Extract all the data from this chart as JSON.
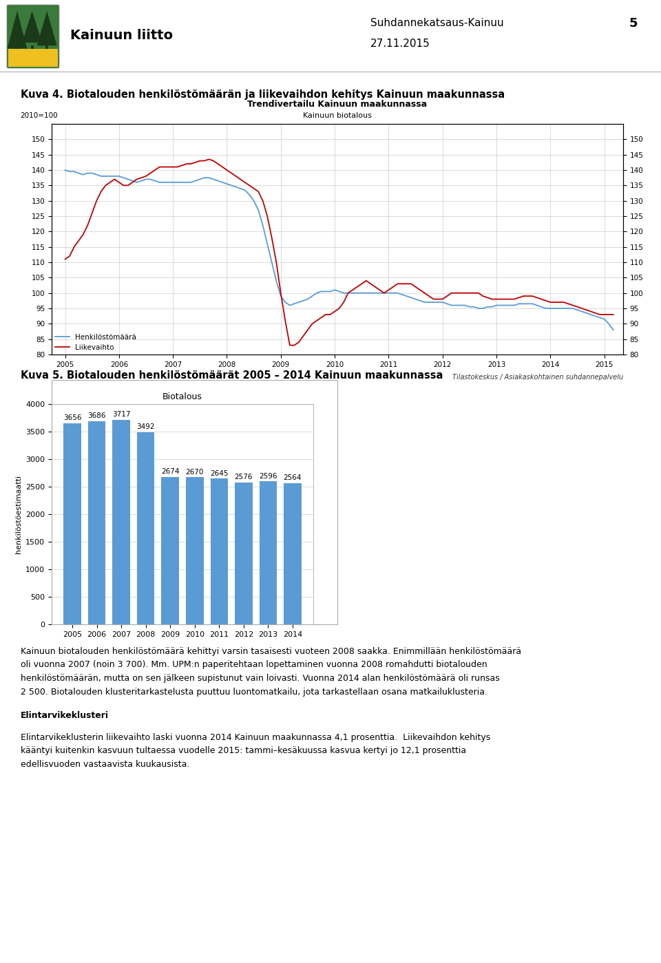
{
  "page_title_left": "Kainuun liitto",
  "page_title_right": "Suhdannekatsaus-Kainuu\n27.11.2015",
  "page_number": "5",
  "kuva4_title": "Kuva 4. Biotalouden henkilöstömäärän ja liikevaihdon kehitys Kainuun maakunnassa",
  "kuva4_chart_title1": "Trendivertailu Kainuun maakunnassa",
  "kuva4_chart_title2": "Kainuun biotalous",
  "kuva4_ylabel": "2010=100",
  "kuva4_source": "Tilastokeskus / Asiakaskohtainen suhdannepalvelu",
  "kuva4_legend1": "Henkilöstömäärä",
  "kuva4_legend2": "Liikevaihto",
  "kuva4_ylim": [
    80,
    155
  ],
  "kuva4_yticks": [
    80,
    85,
    90,
    95,
    100,
    105,
    110,
    115,
    120,
    125,
    130,
    135,
    140,
    145,
    150
  ],
  "kuva4_color_blue": "#5B9BD5",
  "kuva4_color_red": "#C00000",
  "kuva4_blue_x": [
    2005.0,
    2005.083,
    2005.167,
    2005.25,
    2005.333,
    2005.417,
    2005.5,
    2005.583,
    2005.667,
    2005.75,
    2005.833,
    2005.917,
    2006.0,
    2006.083,
    2006.167,
    2006.25,
    2006.333,
    2006.417,
    2006.5,
    2006.583,
    2006.667,
    2006.75,
    2006.833,
    2006.917,
    2007.0,
    2007.083,
    2007.167,
    2007.25,
    2007.333,
    2007.417,
    2007.5,
    2007.583,
    2007.667,
    2007.75,
    2007.833,
    2007.917,
    2008.0,
    2008.083,
    2008.167,
    2008.25,
    2008.333,
    2008.417,
    2008.5,
    2008.583,
    2008.667,
    2008.75,
    2008.833,
    2008.917,
    2009.0,
    2009.083,
    2009.167,
    2009.25,
    2009.333,
    2009.417,
    2009.5,
    2009.583,
    2009.667,
    2009.75,
    2009.833,
    2009.917,
    2010.0,
    2010.083,
    2010.167,
    2010.25,
    2010.333,
    2010.417,
    2010.5,
    2010.583,
    2010.667,
    2010.75,
    2010.833,
    2010.917,
    2011.0,
    2011.083,
    2011.167,
    2011.25,
    2011.333,
    2011.417,
    2011.5,
    2011.583,
    2011.667,
    2011.75,
    2011.833,
    2011.917,
    2012.0,
    2012.083,
    2012.167,
    2012.25,
    2012.333,
    2012.417,
    2012.5,
    2012.583,
    2012.667,
    2012.75,
    2012.833,
    2012.917,
    2013.0,
    2013.083,
    2013.167,
    2013.25,
    2013.333,
    2013.417,
    2013.5,
    2013.583,
    2013.667,
    2013.75,
    2013.833,
    2013.917,
    2014.0,
    2014.083,
    2014.167,
    2014.25,
    2014.333,
    2014.417,
    2014.5,
    2014.583,
    2014.667,
    2014.75,
    2014.833,
    2014.917,
    2015.0,
    2015.083,
    2015.167
  ],
  "kuva4_blue_y": [
    140.0,
    139.5,
    139.5,
    139.0,
    138.5,
    139.0,
    139.0,
    138.5,
    138.0,
    138.0,
    138.0,
    138.0,
    138.0,
    137.5,
    137.0,
    136.5,
    136.0,
    136.5,
    137.0,
    137.0,
    136.5,
    136.0,
    136.0,
    136.0,
    136.0,
    136.0,
    136.0,
    136.0,
    136.0,
    136.5,
    137.0,
    137.5,
    137.5,
    137.0,
    136.5,
    136.0,
    135.5,
    135.0,
    134.5,
    134.0,
    133.5,
    132.0,
    130.0,
    127.0,
    122.0,
    116.0,
    110.0,
    104.0,
    99.0,
    97.0,
    96.0,
    96.5,
    97.0,
    97.5,
    98.0,
    99.0,
    100.0,
    100.5,
    100.5,
    100.5,
    101.0,
    100.5,
    100.0,
    100.0,
    100.0,
    100.0,
    100.0,
    100.0,
    100.0,
    100.0,
    100.0,
    100.0,
    100.0,
    100.0,
    100.0,
    99.5,
    99.0,
    98.5,
    98.0,
    97.5,
    97.0,
    97.0,
    97.0,
    97.0,
    97.0,
    96.5,
    96.0,
    96.0,
    96.0,
    96.0,
    95.5,
    95.5,
    95.0,
    95.0,
    95.5,
    95.5,
    96.0,
    96.0,
    96.0,
    96.0,
    96.0,
    96.5,
    96.5,
    96.5,
    96.5,
    96.0,
    95.5,
    95.0,
    95.0,
    95.0,
    95.0,
    95.0,
    95.0,
    95.0,
    94.5,
    94.0,
    93.5,
    93.0,
    92.5,
    92.0,
    91.5,
    90.0,
    88.0
  ],
  "kuva4_red_x": [
    2005.0,
    2005.083,
    2005.167,
    2005.25,
    2005.333,
    2005.417,
    2005.5,
    2005.583,
    2005.667,
    2005.75,
    2005.833,
    2005.917,
    2006.0,
    2006.083,
    2006.167,
    2006.25,
    2006.333,
    2006.417,
    2006.5,
    2006.583,
    2006.667,
    2006.75,
    2006.833,
    2006.917,
    2007.0,
    2007.083,
    2007.167,
    2007.25,
    2007.333,
    2007.417,
    2007.5,
    2007.583,
    2007.667,
    2007.75,
    2007.833,
    2007.917,
    2008.0,
    2008.083,
    2008.167,
    2008.25,
    2008.333,
    2008.417,
    2008.5,
    2008.583,
    2008.667,
    2008.75,
    2008.833,
    2008.917,
    2009.0,
    2009.083,
    2009.167,
    2009.25,
    2009.333,
    2009.417,
    2009.5,
    2009.583,
    2009.667,
    2009.75,
    2009.833,
    2009.917,
    2010.0,
    2010.083,
    2010.167,
    2010.25,
    2010.333,
    2010.417,
    2010.5,
    2010.583,
    2010.667,
    2010.75,
    2010.833,
    2010.917,
    2011.0,
    2011.083,
    2011.167,
    2011.25,
    2011.333,
    2011.417,
    2011.5,
    2011.583,
    2011.667,
    2011.75,
    2011.833,
    2011.917,
    2012.0,
    2012.083,
    2012.167,
    2012.25,
    2012.333,
    2012.417,
    2012.5,
    2012.583,
    2012.667,
    2012.75,
    2012.833,
    2012.917,
    2013.0,
    2013.083,
    2013.167,
    2013.25,
    2013.333,
    2013.417,
    2013.5,
    2013.583,
    2013.667,
    2013.75,
    2013.833,
    2013.917,
    2014.0,
    2014.083,
    2014.167,
    2014.25,
    2014.333,
    2014.417,
    2014.5,
    2014.583,
    2014.667,
    2014.75,
    2014.833,
    2014.917,
    2015.0,
    2015.083,
    2015.167
  ],
  "kuva4_red_y": [
    111.0,
    112.0,
    115.0,
    117.0,
    119.0,
    122.0,
    126.0,
    130.0,
    133.0,
    135.0,
    136.0,
    137.0,
    136.0,
    135.0,
    135.0,
    136.0,
    137.0,
    137.5,
    138.0,
    139.0,
    140.0,
    141.0,
    141.0,
    141.0,
    141.0,
    141.0,
    141.5,
    142.0,
    142.0,
    142.5,
    143.0,
    143.0,
    143.5,
    143.0,
    142.0,
    141.0,
    140.0,
    139.0,
    138.0,
    137.0,
    136.0,
    135.0,
    134.0,
    133.0,
    130.0,
    125.0,
    118.0,
    110.0,
    100.0,
    91.0,
    83.0,
    83.0,
    84.0,
    86.0,
    88.0,
    90.0,
    91.0,
    92.0,
    93.0,
    93.0,
    94.0,
    95.0,
    97.0,
    100.0,
    101.0,
    102.0,
    103.0,
    104.0,
    103.0,
    102.0,
    101.0,
    100.0,
    101.0,
    102.0,
    103.0,
    103.0,
    103.0,
    103.0,
    102.0,
    101.0,
    100.0,
    99.0,
    98.0,
    98.0,
    98.0,
    99.0,
    100.0,
    100.0,
    100.0,
    100.0,
    100.0,
    100.0,
    100.0,
    99.0,
    98.5,
    98.0,
    98.0,
    98.0,
    98.0,
    98.0,
    98.0,
    98.5,
    99.0,
    99.0,
    99.0,
    98.5,
    98.0,
    97.5,
    97.0,
    97.0,
    97.0,
    97.0,
    96.5,
    96.0,
    95.5,
    95.0,
    94.5,
    94.0,
    93.5,
    93.0,
    93.0,
    93.0,
    93.0
  ],
  "kuva5_title": "Kuva 5. Biotalouden henkilöstömäärät 2005 – 2014 Kainuun maakunnassa",
  "kuva5_chart_title": "Biotalous",
  "kuva5_ylabel": "henkilöstöestimaatti",
  "kuva5_categories": [
    "2005",
    "2006",
    "2007",
    "2008",
    "2009",
    "2010",
    "2011",
    "2012",
    "2013",
    "2014"
  ],
  "kuva5_values": [
    3656,
    3686,
    3717,
    3492,
    2674,
    2670,
    2645,
    2576,
    2596,
    2564
  ],
  "kuva5_bar_color": "#5B9BD5",
  "kuva5_ylim": [
    0,
    4000
  ],
  "kuva5_yticks": [
    0,
    500,
    1000,
    1500,
    2000,
    2500,
    3000,
    3500,
    4000
  ],
  "body_text1_lines": [
    "Kainuun biotalouden henkilöstömäärä kehittyi varsin tasaisesti vuoteen 2008 saakka. Enimmillään henkilöstömäärä",
    "oli vuonna 2007 (noin 3 700). Mm. UPM:n paperitehtaan lopettaminen vuonna 2008 romahdutti biotalouden",
    "henkilöstömäärän, mutta on sen jälkeen supistunut vain loivasti. Vuonna 2014 alan henkilöstömäärä oli runsas",
    "2 500. Biotalouden klusteritarkastelusta puuttuu luontomatkailu, jota tarkastellaan osana matkailuklusteria."
  ],
  "elintarvi_title": "Elintarvikeklusteri",
  "body_text2_lines": [
    "Elintarvikeklusterin liikevaihto laski vuonna 2014 Kainuun maakunnassa 4,1 prosenttia.  Liikevaihdon kehitys",
    "kääntyi kuitenkin kasvuun tultaessa vuodelle 2015: tammi–kesäkuussa kasvua kertyi jo 12,1 prosenttia",
    "edellisvuoden vastaavista kuukausista."
  ],
  "bg_color": "#FFFFFF",
  "text_color": "#000000",
  "grid_color": "#CCCCCC",
  "shield_green": "#3A7A3A",
  "shield_dark_green": "#2D5A2D",
  "shield_yellow": "#F0C020"
}
